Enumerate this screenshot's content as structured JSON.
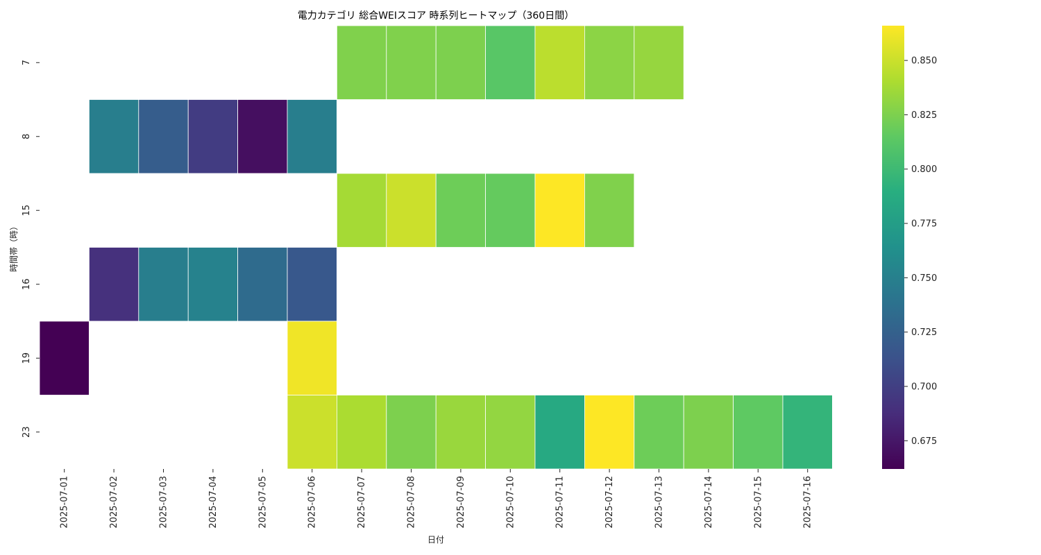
{
  "chart_data": {
    "type": "heatmap",
    "title": "電力カテゴリ 総合WEIスコア 時系列ヒートマップ（360日間）",
    "xlabel": "日付",
    "ylabel": "時間帯（時）",
    "x": [
      "2025-07-01",
      "2025-07-02",
      "2025-07-03",
      "2025-07-04",
      "2025-07-05",
      "2025-07-06",
      "2025-07-07",
      "2025-07-08",
      "2025-07-09",
      "2025-07-10",
      "2025-07-11",
      "2025-07-12",
      "2025-07-13",
      "2025-07-14",
      "2025-07-15",
      "2025-07-16"
    ],
    "y": [
      "7",
      "8",
      "15",
      "16",
      "19",
      "23"
    ],
    "values": [
      [
        null,
        null,
        null,
        null,
        null,
        null,
        0.826,
        0.826,
        0.825,
        0.812,
        0.845,
        0.83,
        0.833,
        null,
        null,
        null
      ],
      [
        null,
        0.748,
        0.722,
        0.698,
        0.67,
        0.748,
        null,
        null,
        null,
        null,
        null,
        null,
        null,
        null,
        null,
        null
      ],
      [
        null,
        null,
        null,
        null,
        null,
        null,
        0.838,
        0.85,
        0.82,
        0.817,
        0.866,
        0.826,
        null,
        null,
        null,
        null
      ],
      [
        null,
        0.69,
        0.748,
        0.752,
        0.733,
        0.718,
        null,
        null,
        null,
        null,
        null,
        null,
        null,
        null,
        null,
        null
      ],
      [
        0.662,
        null,
        null,
        null,
        null,
        0.862,
        null,
        null,
        null,
        null,
        null,
        null,
        null,
        null,
        null,
        null
      ],
      [
        null,
        null,
        null,
        null,
        null,
        0.85,
        0.84,
        0.825,
        0.834,
        0.832,
        0.785,
        0.866,
        0.82,
        0.825,
        0.815,
        0.795
      ]
    ],
    "colormap": "viridis",
    "colorbar": {
      "range": [
        0.662,
        0.866
      ],
      "ticks": [
        "0.675",
        "0.700",
        "0.725",
        "0.750",
        "0.775",
        "0.800",
        "0.825",
        "0.850"
      ]
    },
    "grid": false,
    "legend": "right colorbar"
  }
}
